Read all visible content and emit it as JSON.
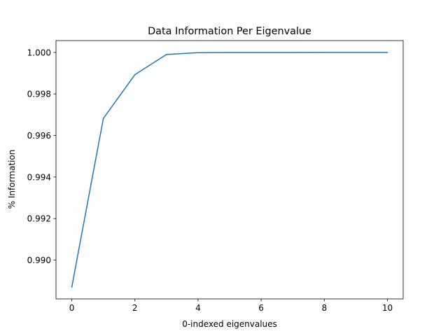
{
  "chart_data": {
    "type": "line",
    "title": "Data Information Per Eigenvalue",
    "xlabel": "0-indexed eigenvalues",
    "ylabel": "% Information",
    "x": [
      0,
      1,
      2,
      3,
      4,
      5,
      6,
      7,
      8,
      9,
      10
    ],
    "series": [
      {
        "values": [
          0.9887,
          0.99682,
          0.99893,
          0.9999,
          0.99999,
          0.999995,
          0.999998,
          0.999999,
          1.0,
          1.0,
          1.0
        ],
        "color": "#1f77b4"
      }
    ],
    "xlim": [
      -0.5,
      10.5
    ],
    "ylim": [
      0.98813,
      1.00057
    ],
    "xticks": [
      0,
      2,
      4,
      6,
      8,
      10
    ],
    "xtick_labels": [
      "0",
      "2",
      "4",
      "6",
      "8",
      "10"
    ],
    "yticks": [
      0.99,
      0.992,
      0.994,
      0.996,
      0.998,
      1.0
    ],
    "ytick_labels": [
      "0.990",
      "0.992",
      "0.994",
      "0.996",
      "0.998",
      "1.000"
    ],
    "grid": false,
    "legend": "none"
  }
}
